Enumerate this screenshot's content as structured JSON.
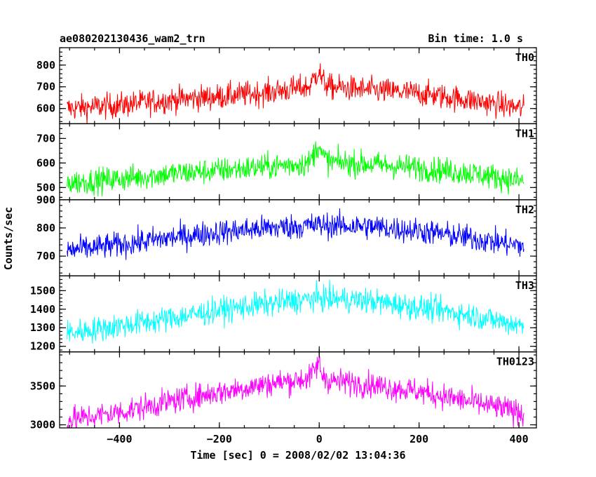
{
  "header": {
    "title": "ae080202130436_wam2_trn",
    "bin_time": "Bin time: 1.0 s"
  },
  "chart_data": {
    "type": "line",
    "xlabel": "Time [sec] 0 = 2008/02/02 13:04:36",
    "ylabel": "Counts/sec",
    "xlim": [
      -520,
      435
    ],
    "xticks": [
      -400,
      -200,
      0,
      200,
      400
    ],
    "x_range": [
      -505,
      410
    ],
    "grid": false,
    "panels": [
      {
        "name": "TH0",
        "color": "#ff0000",
        "ylim": [
          530,
          880
        ],
        "yticks": [
          600,
          700,
          800
        ],
        "series": {
          "x": [
            -505,
            -400,
            -300,
            -200,
            -100,
            -20,
            0,
            5,
            20,
            100,
            200,
            300,
            410
          ],
          "y": [
            600,
            615,
            640,
            655,
            675,
            700,
            780,
            730,
            700,
            685,
            670,
            640,
            600
          ]
        }
      },
      {
        "name": "TH1",
        "color": "#00ff00",
        "ylim": [
          450,
          760
        ],
        "yticks": [
          500,
          600,
          700
        ],
        "series": {
          "x": [
            -505,
            -400,
            -300,
            -200,
            -100,
            -20,
            0,
            5,
            20,
            100,
            200,
            300,
            410
          ],
          "y": [
            520,
            535,
            555,
            570,
            585,
            600,
            680,
            630,
            605,
            595,
            580,
            560,
            525
          ]
        }
      },
      {
        "name": "TH2",
        "color": "#0000ff",
        "ylim": [
          630,
          900
        ],
        "yticks": [
          700,
          800,
          900
        ],
        "series": {
          "x": [
            -505,
            -400,
            -300,
            -200,
            -100,
            0,
            100,
            200,
            300,
            410
          ],
          "y": [
            720,
            740,
            765,
            785,
            800,
            810,
            805,
            790,
            765,
            735
          ]
        }
      },
      {
        "name": "TH3",
        "color": "#00ffff",
        "ylim": [
          1170,
          1580
        ],
        "yticks": [
          1200,
          1300,
          1400,
          1500
        ],
        "series": {
          "x": [
            -505,
            -400,
            -300,
            -200,
            -100,
            0,
            100,
            200,
            300,
            410
          ],
          "y": [
            1270,
            1310,
            1350,
            1395,
            1430,
            1460,
            1445,
            1410,
            1370,
            1310
          ]
        }
      },
      {
        "name": "TH0123",
        "color": "#ff00ff",
        "ylim": [
          2960,
          3940
        ],
        "yticks": [
          3000,
          3500
        ],
        "series": {
          "x": [
            -505,
            -400,
            -300,
            -200,
            -100,
            -20,
            0,
            5,
            20,
            100,
            200,
            300,
            410
          ],
          "y": [
            3060,
            3160,
            3300,
            3420,
            3530,
            3600,
            3800,
            3650,
            3570,
            3520,
            3430,
            3300,
            3150
          ]
        }
      }
    ]
  }
}
